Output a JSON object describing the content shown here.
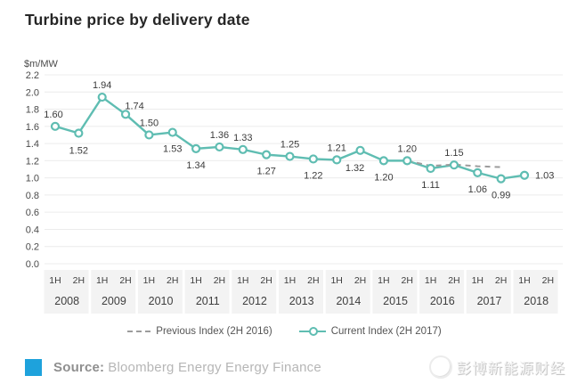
{
  "title": "Turbine price by delivery date",
  "chart_data": {
    "type": "line",
    "title": "Turbine price by delivery date",
    "ylabel": "$m/MW",
    "xlabel": "",
    "ylim": [
      0.0,
      2.2
    ],
    "ytick_step": 0.2,
    "yticks": [
      "2.2",
      "2.0",
      "1.8",
      "1.6",
      "1.4",
      "1.2",
      "1.0",
      "0.8",
      "0.6",
      "0.4",
      "0.2",
      "0.0"
    ],
    "grid": "horizontal",
    "legend_position": "bottom-center",
    "years": [
      "2008",
      "2009",
      "2010",
      "2011",
      "2012",
      "2013",
      "2014",
      "2015",
      "2016",
      "2017",
      "2018"
    ],
    "half_year_labels": [
      "1H",
      "2H"
    ],
    "x_categories": [
      "1H 2008",
      "2H 2008",
      "1H 2009",
      "2H 2009",
      "1H 2010",
      "2H 2010",
      "1H 2011",
      "2H 2011",
      "1H 2012",
      "2H 2012",
      "1H 2013",
      "2H 2013",
      "1H 2014",
      "2H 2014",
      "1H 2015",
      "2H 2015",
      "1H 2016",
      "2H 2016",
      "1H 2017",
      "2H 2017",
      "1H 2018",
      "2H 2018"
    ],
    "series": [
      {
        "name": "Previous Index (2H 2016)",
        "style": "dashed",
        "color": "#9c9c9c",
        "points": [
          [
            15,
            1.2
          ],
          [
            16,
            1.14
          ],
          [
            17,
            1.155
          ],
          [
            18,
            1.135
          ],
          [
            19,
            1.125
          ]
        ]
      },
      {
        "name": "Current Index (2H 2017)",
        "style": "solid-markers",
        "color": "#5fbdb2",
        "start_index": 0,
        "values": [
          1.6,
          1.52,
          1.94,
          1.74,
          1.5,
          1.53,
          1.34,
          1.36,
          1.33,
          1.27,
          1.25,
          1.22,
          1.21,
          1.32,
          1.2,
          1.2,
          1.11,
          1.15,
          1.06,
          0.99,
          1.03
        ],
        "labels": [
          "1.60",
          "1.52",
          "1.94",
          "1.74",
          "1.50",
          "1.53",
          "1.34",
          "1.36",
          "1.33",
          "1.27",
          "1.25",
          "1.22",
          "1.21",
          "1.32",
          "1.20",
          "1.20",
          "1.11",
          "1.15",
          "1.06",
          "0.99",
          "1.03"
        ],
        "label_pos": [
          "above",
          "below",
          "above",
          "above",
          "above",
          "below",
          "below",
          "above",
          "above",
          "below",
          "above",
          "below",
          "above",
          "below",
          "below",
          "above",
          "below",
          "above",
          "below",
          "below",
          "right"
        ]
      }
    ]
  },
  "legend": [
    {
      "label": "Previous Index (2H 2016)",
      "swatch": "dashed-line",
      "color": "#9c9c9c"
    },
    {
      "label": "Current Index (2H 2017)",
      "swatch": "line-with-circle",
      "color": "#5fbdb2"
    }
  ],
  "footer": {
    "source_label": "Source:",
    "source_text": "Bloomberg Energy Energy Finance",
    "brand_color": "#1ea2dc"
  },
  "watermark": {
    "text": "彭博新能源财经"
  },
  "colors": {
    "current_line": "#5fbdb2",
    "previous_line": "#9c9c9c",
    "gridline": "#ececec",
    "axis_band": "#f3f3f3",
    "data_label": "#3b3b3b",
    "tick_label": "#4a4a4a"
  }
}
